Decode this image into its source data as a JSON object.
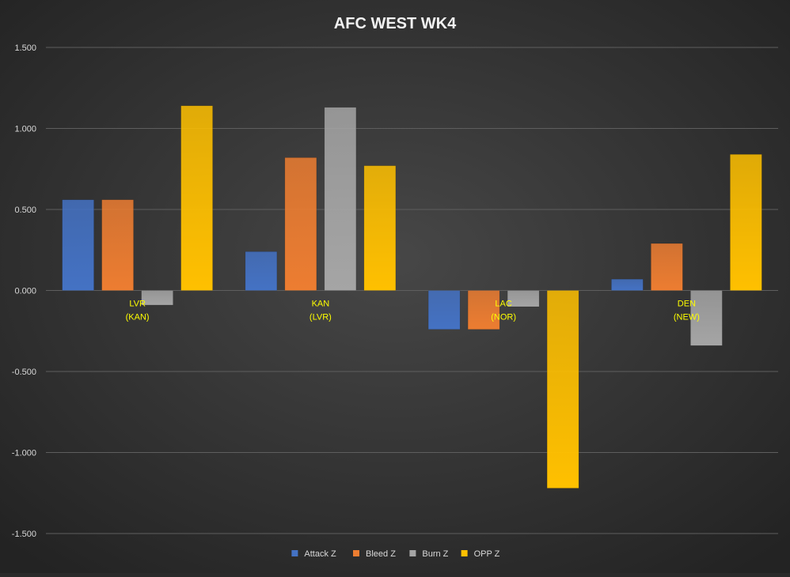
{
  "chart_data": {
    "type": "bar",
    "title": "AFC WEST WK4",
    "xlabel": "",
    "ylabel": "",
    "ylim": [
      -1.5,
      1.5
    ],
    "yticks": [
      1.5,
      1.0,
      0.5,
      0.0,
      -0.5,
      -1.0,
      -1.5
    ],
    "ytick_labels": [
      "1.500",
      "1.000",
      "0.500",
      "0.000",
      "-0.500",
      "-1.000",
      "-1.500"
    ],
    "grid": true,
    "legend_position": "bottom",
    "categories": [
      {
        "line1": "LVR",
        "line2": "(KAN)"
      },
      {
        "line1": "KAN",
        "line2": "(LVR)"
      },
      {
        "line1": "LAC",
        "line2": "(NOR)"
      },
      {
        "line1": "DEN",
        "line2": "(NEW)"
      }
    ],
    "series": [
      {
        "name": "Attack Z",
        "color": "#4472c4",
        "values": [
          0.56,
          0.24,
          -0.24,
          0.07
        ]
      },
      {
        "name": "Bleed Z",
        "color": "#ed7d31",
        "values": [
          0.56,
          0.82,
          -0.24,
          0.29
        ]
      },
      {
        "name": "Burn Z",
        "color": "#a5a5a5",
        "values": [
          -0.09,
          1.13,
          -0.1,
          -0.34
        ]
      },
      {
        "name": "OPP Z",
        "color": "#ffc000",
        "values": [
          1.14,
          0.77,
          -1.22,
          0.84
        ]
      }
    ]
  },
  "colors": {
    "background_center": "#474747",
    "background_edge": "#232323",
    "grid": "#5e5e5e",
    "axis_text": "#d9d9d9",
    "category_text": "#ffff00",
    "title_text": "#f2f2f2"
  }
}
